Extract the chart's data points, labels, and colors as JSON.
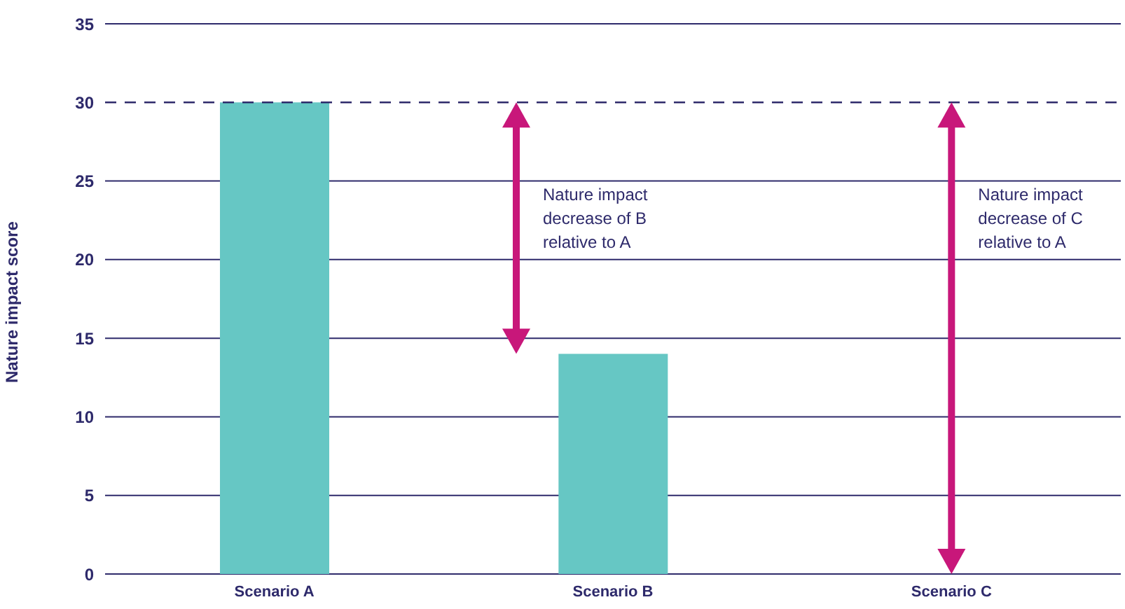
{
  "chart_data": {
    "type": "bar",
    "ylabel": "Nature impact score",
    "categories": [
      "Scenario A",
      "Scenario B",
      "Scenario C"
    ],
    "values": [
      30,
      14,
      0
    ],
    "color": "#66c7c4",
    "ylim": [
      0,
      35
    ],
    "yticks": [
      0,
      5,
      10,
      15,
      20,
      25,
      30,
      35
    ],
    "grid": "y",
    "ref_lines": [
      {
        "axis": "y",
        "value": 30,
        "color": "#2e2a6b",
        "line_style": "dashed"
      }
    ],
    "annotations": [
      "Nature impact decrease of B relative to A",
      "Nature impact decrease of C relative to A"
    ]
  }
}
